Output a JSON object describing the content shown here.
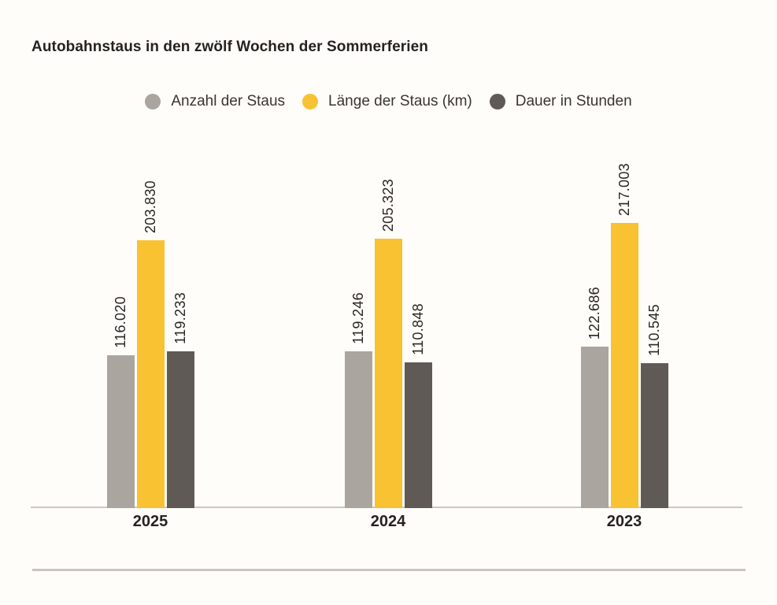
{
  "title": "Autobahnstaus in den zwölf Wochen der Sommerferien",
  "colors": {
    "background": "#fffdfa",
    "anzahl_gray": "#aba5a0",
    "laenge_yellow": "#f9c233",
    "dauer_dark": "#5f5a55",
    "baseline": "#cbc7c3",
    "divider": "#c8c4c0",
    "text_dark": "#262220"
  },
  "legend": [
    {
      "label": "Anzahl der Staus",
      "color": "#aba5a0"
    },
    {
      "label": "Länge der Staus (km)",
      "color": "#f9c233"
    },
    {
      "label": "Dauer in Stunden",
      "color": "#5f5a55"
    }
  ],
  "chart_data": {
    "type": "bar",
    "title": "Autobahnstaus in den zwölf Wochen der Sommerferien",
    "categories": [
      "2025",
      "2024",
      "2023"
    ],
    "series": [
      {
        "name": "Anzahl der Staus",
        "color": "#aba5a0",
        "values": [
          116020,
          119246,
          122686
        ],
        "labels": [
          "116.020",
          "119.246",
          "122.686"
        ]
      },
      {
        "name": "Länge der Staus (km)",
        "color": "#f9c233",
        "values": [
          203830,
          205323,
          217003
        ],
        "labels": [
          "203.830",
          "205.323",
          "217.003"
        ]
      },
      {
        "name": "Dauer in Stunden",
        "color": "#5f5a55",
        "values": [
          119233,
          110848,
          110545
        ],
        "labels": [
          "119.233",
          "110.848",
          "110.545"
        ]
      }
    ],
    "value_label_rotation": "vertical-bottom-to-top",
    "xlabel": "",
    "ylabel": "",
    "ylim": [
      0,
      230000
    ],
    "grid": false,
    "legend_position": "top-center",
    "axis": "baseline-only"
  }
}
